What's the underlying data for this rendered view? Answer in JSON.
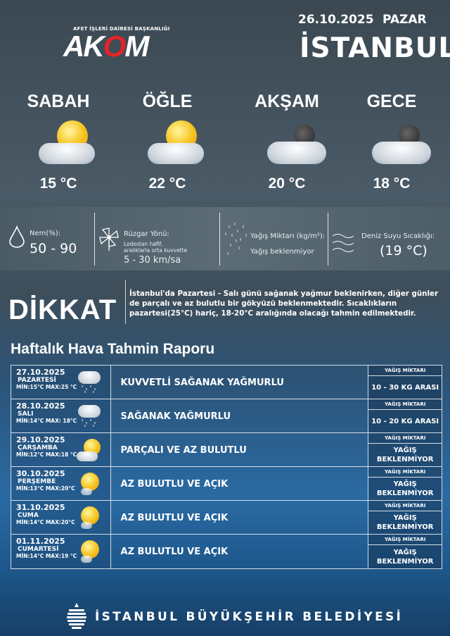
{
  "header": {
    "date": "26.10.2025",
    "day": "PAZAR",
    "city": "İSTANBUL"
  },
  "logo": {
    "subtitle": "AFET İŞLERİ DAİRESİ BAŞKANLIĞI",
    "name_a": "AK",
    "name_o": "O",
    "name_m": "M"
  },
  "periods": [
    {
      "label": "SABAH",
      "temp": "15 °C",
      "icon": "sun-cloud-icon"
    },
    {
      "label": "ÖĞLE",
      "temp": "22 °C",
      "icon": "sun-cloud-icon"
    },
    {
      "label": "AKŞAM",
      "temp": "20 °C",
      "icon": "moon-cloud-icon"
    },
    {
      "label": "GECE",
      "temp": "18 °C",
      "icon": "moon-cloud-icon"
    }
  ],
  "details": {
    "humidity_label": "Nem(%):",
    "humidity_value": "50 - 90",
    "wind_label": "Rüzgar Yönü:",
    "wind_desc1": "Lodostan hafif,",
    "wind_desc2": "aralıklarla orta kuvvette",
    "wind_value": "5 - 30 km/sa",
    "rain_label": "Yağış Miktarı (kg/m²):",
    "rain_value": "Yağış beklenmiyor",
    "sea_label": "Deniz Suyu Sıcaklığı:",
    "sea_value": "(19 °C)"
  },
  "warning": {
    "title": "DİKKAT",
    "text": "İstanbul'da Pazartesi - Salı günü sağanak yağmur beklenirken, diğer günler de parçalı ve az bulutlu bir gökyüzü beklenmektedir. Sıcaklıkların pazartesi(25°C) hariç, 18-20°C aralığında olacağı tahmin edilmektedir."
  },
  "weekly": {
    "title": "Haftalık Hava Tahmin Raporu",
    "rain_header": "YAĞIŞ MİKTARI",
    "rows": [
      {
        "date": "27.10.2025",
        "day": "PAZARTESİ",
        "minmax": "MİN:15°C MAX:25 °C",
        "desc": "KUVVETLİ SAĞANAK YAĞMURLU",
        "rain": "10 - 30 KG ARASI",
        "icon": "rain-cloud-icon"
      },
      {
        "date": "28.10.2025",
        "day": "SALI",
        "minmax": "MİN:14°C MAX: 18°C",
        "desc": "SAĞANAK YAĞMURLU",
        "rain": "10 - 20 KG ARASI",
        "icon": "rain-cloud-icon"
      },
      {
        "date": "29.10.2025",
        "day": "ÇARŞAMBA",
        "minmax": "MİN:12°C MAX:18 °C",
        "desc": "PARÇALI VE AZ BULUTLU",
        "rain": "YAĞIŞ BEKLENMİYOR",
        "icon": "sun-cloud-icon"
      },
      {
        "date": "30.10.2025",
        "day": "PERŞEMBE",
        "minmax": "MİN:13°C MAX:20°C",
        "desc": "AZ BULUTLU VE AÇIK",
        "rain": "YAĞIŞ BEKLENMİYOR",
        "icon": "sun-icon"
      },
      {
        "date": "31.10.2025",
        "day": "CUMA",
        "minmax": "MİN:14°C MAX:20°C",
        "desc": "AZ BULUTLU VE AÇIK",
        "rain": "YAĞIŞ BEKLENMİYOR",
        "icon": "sun-icon"
      },
      {
        "date": "01.11.2025",
        "day": "CUMARTESİ",
        "minmax": "MİN:14°C MAX:19 °C",
        "desc": "AZ BULUTLU VE AÇIK",
        "rain": "YAĞIŞ BEKLENMİYOR",
        "icon": "sun-icon"
      }
    ]
  },
  "footer": {
    "text": "İSTANBUL BÜYÜKŞEHİR BELEDİYESİ"
  }
}
